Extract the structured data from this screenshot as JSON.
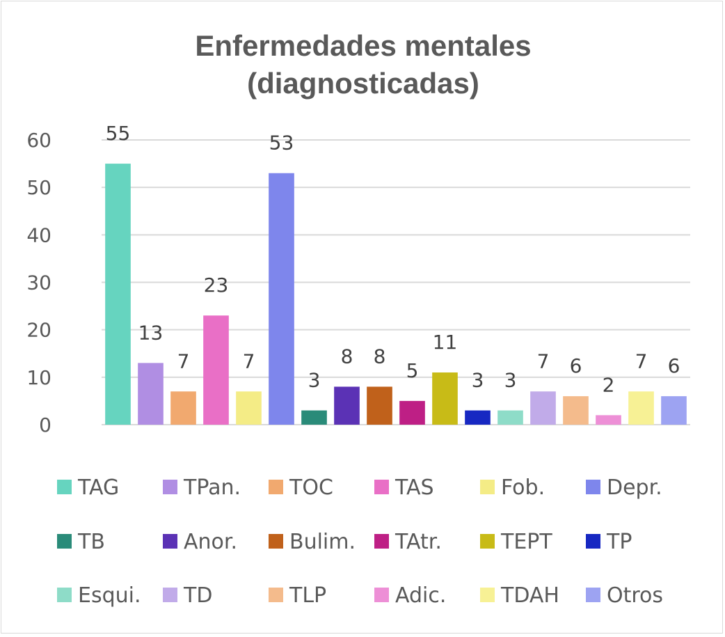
{
  "chart_data": {
    "type": "bar",
    "title_line1": "Enfermedades mentales",
    "title_line2": "(diagnosticadas)",
    "xlabel": "",
    "ylabel": "",
    "ylim": [
      0,
      60
    ],
    "yticks": [
      0,
      10,
      20,
      30,
      40,
      50,
      60
    ],
    "grid": true,
    "legend_position": "bottom",
    "categories": [
      "TAG",
      "TPan.",
      "TOC",
      "TAS",
      "Fob.",
      "Depr.",
      "TB",
      "Anor.",
      "Bulim.",
      "TAtr.",
      "TEPT",
      "TP",
      "Esqui.",
      "TD",
      "TLP",
      "Adic.",
      "TDAH",
      "Otros"
    ],
    "values": [
      55,
      13,
      7,
      23,
      7,
      53,
      3,
      8,
      8,
      5,
      11,
      3,
      3,
      7,
      6,
      2,
      7,
      6
    ],
    "colors": [
      "#66d4bf",
      "#b08ee3",
      "#f1a96f",
      "#e96fc6",
      "#f4ec86",
      "#7e86ec",
      "#2a8b79",
      "#5b32b5",
      "#c0611b",
      "#be1f85",
      "#c8bb17",
      "#1728c2",
      "#8edcc8",
      "#c1abe9",
      "#f4bb8c",
      "#ed8fd6",
      "#f7f195",
      "#9da3f2"
    ]
  }
}
